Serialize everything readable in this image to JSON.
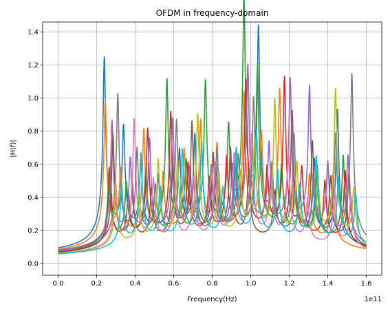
{
  "chart_data": {
    "type": "line",
    "title": "OFDM in frequency-domain",
    "xlabel": "Frequency(Hz)",
    "ylabel": "|H(f)|",
    "x_offset_label": "1e11",
    "xlim": [
      -0.08,
      1.68
    ],
    "ylim": [
      -0.07,
      1.46
    ],
    "x_ticks": [
      0.0,
      0.2,
      0.4,
      0.6,
      0.8,
      1.0,
      1.2,
      1.4,
      1.6
    ],
    "x_tick_labels": [
      "0.0",
      "0.2",
      "0.4",
      "0.6",
      "0.8",
      "1.0",
      "1.2",
      "1.4",
      "1.6"
    ],
    "y_ticks": [
      0.0,
      0.2,
      0.4,
      0.6,
      0.8,
      1.0,
      1.2,
      1.4
    ],
    "y_tick_labels": [
      "0.0",
      "0.2",
      "0.4",
      "0.6",
      "0.8",
      "1.0",
      "1.2",
      "1.4"
    ],
    "grid": true,
    "legend": false,
    "x_range_data": [
      0.0,
      1.6
    ],
    "series_colors": [
      "#1f77b4",
      "#ff7f0e",
      "#2ca02c",
      "#d62728",
      "#9467bd",
      "#8c564b",
      "#e377c2",
      "#7f7f7f",
      "#bcbd22",
      "#17becf"
    ],
    "series": [
      {
        "color": "#1f77b4",
        "peaks": [
          [
            0.24,
            1.13
          ],
          [
            0.34,
            0.67
          ],
          [
            0.43,
            0.44
          ],
          [
            0.52,
            0.36
          ],
          [
            0.63,
            0.52
          ],
          [
            0.71,
            0.61
          ],
          [
            0.82,
            0.42
          ],
          [
            0.92,
            0.46
          ],
          [
            1.04,
            1.29
          ],
          [
            1.11,
            0.38
          ],
          [
            1.23,
            0.33
          ],
          [
            1.33,
            0.49
          ],
          [
            1.45,
            0.83
          ]
        ]
      },
      {
        "color": "#ff7f0e",
        "peaks": [
          [
            0.245,
            0.88
          ],
          [
            0.325,
            0.41
          ],
          [
            0.445,
            0.67
          ],
          [
            0.545,
            0.38
          ],
          [
            0.655,
            0.51
          ],
          [
            0.74,
            0.69
          ],
          [
            0.825,
            0.54
          ],
          [
            0.965,
            0.87
          ],
          [
            1.055,
            0.6
          ],
          [
            1.15,
            0.89
          ],
          [
            1.225,
            0.31
          ],
          [
            1.305,
            0.39
          ],
          [
            1.425,
            0.43
          ]
        ]
      },
      {
        "color": "#2ca02c",
        "peaks": [
          [
            0.265,
            0.46
          ],
          [
            0.355,
            0.34
          ],
          [
            0.455,
            0.39
          ],
          [
            0.565,
            0.96
          ],
          [
            0.665,
            0.41
          ],
          [
            0.765,
            0.92
          ],
          [
            0.885,
            0.59
          ],
          [
            0.965,
            1.39
          ],
          [
            1.035,
            0.95
          ],
          [
            1.16,
            0.41
          ],
          [
            1.255,
            0.27
          ],
          [
            1.345,
            0.45
          ],
          [
            1.48,
            0.55
          ]
        ]
      },
      {
        "color": "#d62728",
        "peaks": [
          [
            0.27,
            0.48
          ],
          [
            0.365,
            0.28
          ],
          [
            0.465,
            0.68
          ],
          [
            0.585,
            0.77
          ],
          [
            0.675,
            0.44
          ],
          [
            0.785,
            0.35
          ],
          [
            0.875,
            0.47
          ],
          [
            0.975,
            0.96
          ],
          [
            1.085,
            0.39
          ],
          [
            1.175,
            0.98
          ],
          [
            1.265,
            0.42
          ],
          [
            1.385,
            0.37
          ],
          [
            1.49,
            0.46
          ]
        ]
      },
      {
        "color": "#9467bd",
        "peaks": [
          [
            0.28,
            0.75
          ],
          [
            0.375,
            0.48
          ],
          [
            0.475,
            0.6
          ],
          [
            0.595,
            0.72
          ],
          [
            0.685,
            0.41
          ],
          [
            0.795,
            0.42
          ],
          [
            0.905,
            0.39
          ],
          [
            0.985,
            1.03
          ],
          [
            1.095,
            0.53
          ],
          [
            1.205,
            0.94
          ],
          [
            1.305,
            0.9
          ],
          [
            1.4,
            0.44
          ],
          [
            1.505,
            0.53
          ]
        ]
      },
      {
        "color": "#8c564b",
        "peaks": [
          [
            0.285,
            0.69
          ],
          [
            0.385,
            0.36
          ],
          [
            0.485,
            0.32
          ],
          [
            0.595,
            0.44
          ],
          [
            0.695,
            0.72
          ],
          [
            0.805,
            0.51
          ],
          [
            0.895,
            0.55
          ],
          [
            0.99,
            0.41
          ],
          [
            1.125,
            0.28
          ],
          [
            1.215,
            0.79
          ],
          [
            1.32,
            0.6
          ],
          [
            1.415,
            0.39
          ],
          [
            1.51,
            0.45
          ]
        ]
      },
      {
        "color": "#e377c2",
        "peaks": [
          [
            0.295,
            0.37
          ],
          [
            0.395,
            0.77
          ],
          [
            0.495,
            0.38
          ],
          [
            0.605,
            0.38
          ],
          [
            0.705,
            0.39
          ],
          [
            0.815,
            0.47
          ],
          [
            0.915,
            0.52
          ],
          [
            1.005,
            0.64
          ],
          [
            1.105,
            0.44
          ],
          [
            1.195,
            0.56
          ],
          [
            1.295,
            0.27
          ],
          [
            1.435,
            0.36
          ],
          [
            1.52,
            0.32
          ]
        ]
      },
      {
        "color": "#7f7f7f",
        "peaks": [
          [
            0.31,
            0.92
          ],
          [
            0.41,
            0.55
          ],
          [
            0.505,
            0.31
          ],
          [
            0.615,
            0.73
          ],
          [
            0.715,
            0.31
          ],
          [
            0.825,
            0.54
          ],
          [
            0.935,
            0.47
          ],
          [
            1.015,
            0.84
          ],
          [
            1.11,
            0.43
          ],
          [
            1.225,
            0.63
          ],
          [
            1.325,
            0.34
          ],
          [
            1.44,
            0.62
          ],
          [
            1.525,
            1.03
          ]
        ]
      },
      {
        "color": "#bcbd22",
        "peaks": [
          [
            0.3,
            0.39
          ],
          [
            0.42,
            0.31
          ],
          [
            0.52,
            0.5
          ],
          [
            0.62,
            0.47
          ],
          [
            0.725,
            0.77
          ],
          [
            0.835,
            0.39
          ],
          [
            0.945,
            0.39
          ],
          [
            1.02,
            0.59
          ],
          [
            1.125,
            0.85
          ],
          [
            1.24,
            0.46
          ],
          [
            1.35,
            0.33
          ],
          [
            1.44,
            0.94
          ],
          [
            1.535,
            0.33
          ]
        ]
      },
      {
        "color": "#17becf",
        "peaks": [
          [
            0.33,
            0.38
          ],
          [
            0.43,
            0.56
          ],
          [
            0.53,
            0.33
          ],
          [
            0.645,
            0.56
          ],
          [
            0.745,
            0.6
          ],
          [
            0.855,
            0.29
          ],
          [
            0.925,
            0.55
          ],
          [
            1.03,
            0.66
          ],
          [
            1.14,
            0.43
          ],
          [
            1.255,
            0.34
          ],
          [
            1.34,
            0.53
          ],
          [
            1.455,
            0.41
          ],
          [
            1.545,
            0.32
          ]
        ]
      }
    ]
  }
}
